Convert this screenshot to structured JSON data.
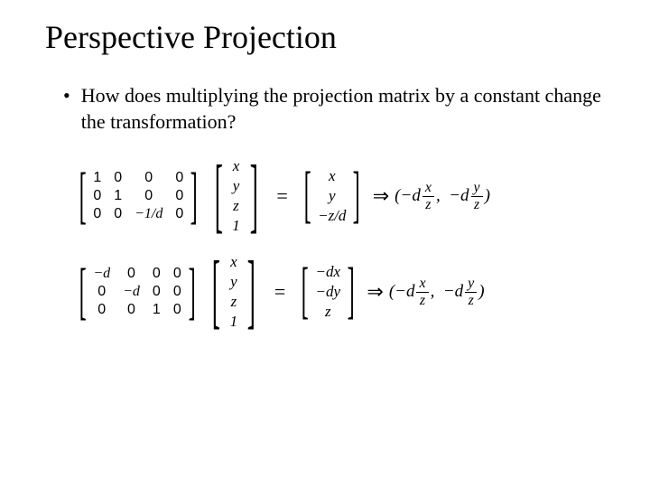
{
  "title": "Perspective Projection",
  "bullet": "How does multiplying the projection matrix by a constant change the transformation?",
  "eq1": {
    "matrix": [
      "1",
      "0",
      "0",
      "0",
      "0",
      "1",
      "0",
      "0",
      "0",
      "0",
      "−1/d",
      "0"
    ],
    "vector": [
      "x",
      "y",
      "z",
      "1"
    ],
    "result": [
      "x",
      "y",
      "−z/d"
    ],
    "tuple_a_coef": "−d",
    "tuple_a_num": "x",
    "tuple_a_den": "z",
    "tuple_b_coef": "−d",
    "tuple_b_num": "y",
    "tuple_b_den": "z"
  },
  "eq2": {
    "matrix": [
      "−d",
      "0",
      "0",
      "0",
      "0",
      "−d",
      "0",
      "0",
      "0",
      "0",
      "1",
      "0"
    ],
    "vector": [
      "x",
      "y",
      "z",
      "1"
    ],
    "result": [
      "−dx",
      "−dy",
      "z"
    ],
    "tuple_a_coef": "−d",
    "tuple_a_num": "x",
    "tuple_a_den": "z",
    "tuple_b_coef": "−d",
    "tuple_b_num": "y",
    "tuple_b_den": "z"
  },
  "symbols": {
    "equals": "=",
    "implies": "⇒",
    "lparen": "(",
    "rparen": ")",
    "comma": ","
  }
}
